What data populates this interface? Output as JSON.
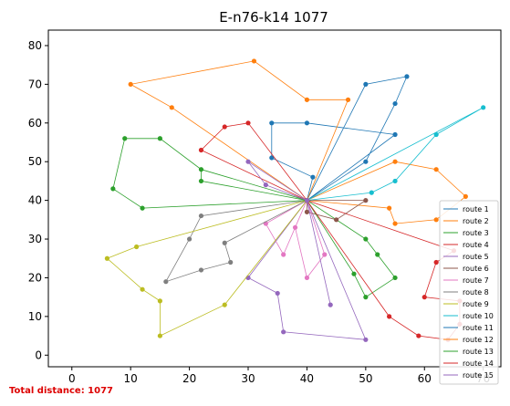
{
  "chart_data": {
    "type": "line",
    "title": "E-n76-k14 1077",
    "xlabel": "",
    "ylabel": "",
    "xlim": [
      -4,
      73
    ],
    "ylim": [
      -3,
      84
    ],
    "xticks": [
      0,
      10,
      20,
      30,
      40,
      50,
      60,
      70,
      80
    ],
    "yticks": [
      0,
      10,
      20,
      30,
      40,
      50,
      60,
      70,
      80
    ],
    "grid": false,
    "legend_position": "bottom-right",
    "depot": [
      40,
      40
    ],
    "series": [
      {
        "name": "route 1",
        "color": "#1f77b4",
        "points": [
          [
            40,
            40
          ],
          [
            55,
            57
          ],
          [
            40,
            60
          ],
          [
            34,
            60
          ],
          [
            34,
            51
          ],
          [
            41,
            46
          ],
          [
            40,
            40
          ],
          [
            50,
            50
          ],
          [
            55,
            65
          ],
          [
            57,
            72
          ],
          [
            50,
            70
          ],
          [
            40,
            40
          ]
        ]
      },
      {
        "name": "route 2",
        "color": "#ff7f0e",
        "points": [
          [
            40,
            40
          ],
          [
            47,
            66
          ],
          [
            40,
            66
          ],
          [
            31,
            76
          ],
          [
            10,
            70
          ],
          [
            17,
            64
          ],
          [
            40,
            40
          ],
          [
            55,
            50
          ],
          [
            62,
            48
          ],
          [
            67,
            41
          ],
          [
            62,
            35
          ],
          [
            55,
            34
          ],
          [
            54,
            38
          ],
          [
            40,
            40
          ]
        ]
      },
      {
        "name": "route 3",
        "color": "#2ca02c",
        "points": [
          [
            40,
            40
          ],
          [
            50,
            30
          ],
          [
            52,
            26
          ],
          [
            55,
            20
          ],
          [
            50,
            15
          ],
          [
            48,
            21
          ],
          [
            40,
            40
          ]
        ]
      },
      {
        "name": "route 4",
        "color": "#d62728",
        "points": [
          [
            40,
            40
          ],
          [
            30,
            60
          ],
          [
            26,
            59
          ],
          [
            22,
            53
          ],
          [
            40,
            40
          ],
          [
            65,
            27
          ],
          [
            62,
            24
          ],
          [
            60,
            15
          ],
          [
            66,
            14
          ],
          [
            66,
            8
          ],
          [
            64,
            4
          ],
          [
            59,
            5
          ],
          [
            54,
            10
          ],
          [
            40,
            40
          ]
        ]
      },
      {
        "name": "route 5",
        "color": "#9467bd",
        "points": [
          [
            40,
            40
          ],
          [
            50,
            4
          ],
          [
            36,
            6
          ],
          [
            35,
            16
          ],
          [
            30,
            20
          ],
          [
            40,
            40
          ]
        ]
      },
      {
        "name": "route 6",
        "color": "#8c564b",
        "points": [
          [
            40,
            40
          ],
          [
            50,
            40
          ],
          [
            45,
            35
          ],
          [
            40,
            37
          ],
          [
            40,
            40
          ]
        ]
      },
      {
        "name": "route 7",
        "color": "#e377c2",
        "points": [
          [
            40,
            40
          ],
          [
            38,
            33
          ],
          [
            40,
            20
          ],
          [
            43,
            26
          ],
          [
            40,
            40
          ],
          [
            33,
            34
          ],
          [
            36,
            26
          ],
          [
            40,
            40
          ]
        ]
      },
      {
        "name": "route 8",
        "color": "#7f7f7f",
        "points": [
          [
            40,
            40
          ],
          [
            22,
            36
          ],
          [
            20,
            30
          ],
          [
            16,
            19
          ],
          [
            22,
            22
          ],
          [
            27,
            24
          ],
          [
            26,
            29
          ],
          [
            40,
            40
          ]
        ]
      },
      {
        "name": "route 9",
        "color": "#bcbd22",
        "points": [
          [
            40,
            40
          ],
          [
            11,
            28
          ],
          [
            6,
            25
          ],
          [
            12,
            17
          ],
          [
            15,
            14
          ],
          [
            15,
            5
          ],
          [
            26,
            13
          ],
          [
            40,
            40
          ]
        ]
      },
      {
        "name": "route 10",
        "color": "#17becf",
        "points": [
          [
            40,
            40
          ],
          [
            51,
            42
          ],
          [
            55,
            45
          ],
          [
            62,
            57
          ],
          [
            70,
            64
          ],
          [
            40,
            40
          ]
        ]
      },
      {
        "name": "route 11",
        "color": "#1f77b4",
        "points": [
          [
            40,
            40
          ],
          [
            40,
            40
          ]
        ]
      },
      {
        "name": "route 12",
        "color": "#ff7f0e",
        "points": [
          [
            40,
            40
          ],
          [
            40,
            40
          ]
        ]
      },
      {
        "name": "route 13",
        "color": "#2ca02c",
        "points": [
          [
            40,
            40
          ],
          [
            22,
            48
          ],
          [
            22,
            45
          ],
          [
            40,
            40
          ],
          [
            12,
            38
          ],
          [
            7,
            43
          ],
          [
            9,
            56
          ],
          [
            15,
            56
          ],
          [
            22,
            48
          ],
          [
            40,
            40
          ]
        ]
      },
      {
        "name": "route 14",
        "color": "#d62728",
        "points": [
          [
            40,
            40
          ],
          [
            40,
            40
          ]
        ]
      },
      {
        "name": "route 15",
        "color": "#9467bd",
        "points": [
          [
            40,
            40
          ],
          [
            44,
            13
          ],
          [
            40,
            40
          ],
          [
            33,
            44
          ],
          [
            30,
            50
          ],
          [
            40,
            40
          ]
        ]
      }
    ]
  },
  "footer": {
    "total_distance": "Total distance: 1077"
  }
}
